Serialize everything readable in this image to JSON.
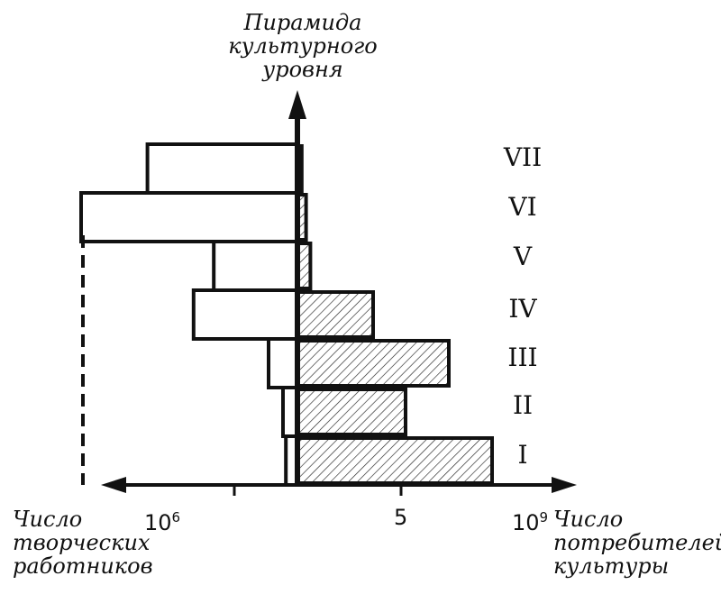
{
  "chart_data": {
    "type": "bar",
    "title_lines": [
      "Пирамида",
      "культурного",
      "уровня"
    ],
    "left_axis_label_lines": [
      "Число",
      "творческих",
      "работников"
    ],
    "right_axis_label_lines": [
      "Число",
      "потребителей",
      "культуры"
    ],
    "left_tick_label": {
      "base": "10",
      "exp": "6"
    },
    "right_tick_labels": [
      {
        "text": "5"
      },
      {
        "base": "10",
        "exp": "9"
      }
    ],
    "categories": [
      "I",
      "II",
      "III",
      "IV",
      "V",
      "VI",
      "VII"
    ],
    "category_display": [
      "I",
      "II",
      "III",
      "IV",
      "V",
      "VI",
      "VII"
    ],
    "series": [
      {
        "name": "",
        "side": "left",
        "style": "outline",
        "values": [
          0.04,
          0.05,
          0.1,
          0.36,
          0.29,
          0.75,
          0.52
        ]
      },
      {
        "name": "",
        "side": "right",
        "style": "hatched",
        "values": [
          0.9,
          0.5,
          0.7,
          0.35,
          0.06,
          0.04,
          0.02
        ]
      }
    ]
  }
}
